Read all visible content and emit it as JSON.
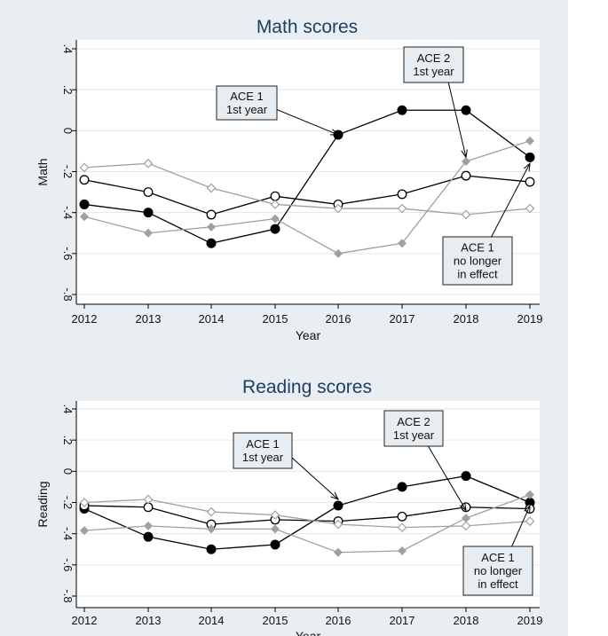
{
  "chart_data": [
    {
      "type": "line",
      "title": "Math scores",
      "xlabel": "Year",
      "ylabel": "Math",
      "x": [
        2012,
        2013,
        2014,
        2015,
        2016,
        2017,
        2018,
        2019
      ],
      "yticks": [
        ".4",
        ".2",
        "0",
        "-.2",
        "-.4",
        "-.6",
        "-.8"
      ],
      "ylim": [
        -0.8,
        0.4
      ],
      "grid": true,
      "series": [
        {
          "marker": "filled-circle",
          "color": "#000000",
          "values": [
            -0.36,
            -0.4,
            -0.55,
            -0.48,
            -0.02,
            0.1,
            0.1,
            -0.13
          ]
        },
        {
          "marker": "hollow-circle",
          "color": "#000000",
          "values": [
            -0.24,
            -0.3,
            -0.41,
            -0.32,
            -0.36,
            -0.31,
            -0.22,
            -0.25
          ]
        },
        {
          "marker": "filled-diamond",
          "color": "#a0a0a0",
          "values": [
            -0.42,
            -0.5,
            -0.47,
            -0.43,
            -0.6,
            -0.55,
            -0.15,
            -0.05
          ]
        },
        {
          "marker": "hollow-diamond",
          "color": "#a0a0a0",
          "values": [
            -0.18,
            -0.16,
            -0.28,
            -0.36,
            -0.38,
            -0.38,
            -0.41,
            -0.38
          ]
        }
      ],
      "annotations": [
        {
          "lines": [
            "ACE 1",
            "1st year"
          ],
          "points_to": {
            "x": 2016,
            "y": -0.02
          }
        },
        {
          "lines": [
            "ACE 2",
            "1st year"
          ],
          "points_to": {
            "x": 2018,
            "y": -0.13
          }
        },
        {
          "lines": [
            "ACE 1",
            "no longer",
            "in effect"
          ],
          "points_to": {
            "x": 2019,
            "y": -0.16
          }
        }
      ]
    },
    {
      "type": "line",
      "title": "Reading scores",
      "xlabel": "Year",
      "ylabel": "Reading",
      "x": [
        2012,
        2013,
        2014,
        2015,
        2016,
        2017,
        2018,
        2019
      ],
      "yticks": [
        ".4",
        ".2",
        "0",
        "-.2",
        "-.4",
        "-.6",
        "-.8"
      ],
      "ylim": [
        -0.8,
        0.4
      ],
      "grid": true,
      "series": [
        {
          "marker": "filled-circle",
          "color": "#000000",
          "values": [
            -0.24,
            -0.42,
            -0.5,
            -0.47,
            -0.22,
            -0.1,
            -0.03,
            -0.2
          ]
        },
        {
          "marker": "hollow-circle",
          "color": "#000000",
          "values": [
            -0.22,
            -0.23,
            -0.34,
            -0.31,
            -0.32,
            -0.29,
            -0.23,
            -0.24
          ]
        },
        {
          "marker": "filled-diamond",
          "color": "#a0a0a0",
          "values": [
            -0.38,
            -0.35,
            -0.37,
            -0.37,
            -0.52,
            -0.51,
            -0.3,
            -0.15
          ]
        },
        {
          "marker": "hollow-diamond",
          "color": "#a0a0a0",
          "values": [
            -0.2,
            -0.18,
            -0.26,
            -0.28,
            -0.34,
            -0.36,
            -0.35,
            -0.32
          ]
        }
      ],
      "annotations": [
        {
          "lines": [
            "ACE 1",
            "1st year"
          ],
          "points_to": {
            "x": 2016,
            "y": -0.18
          }
        },
        {
          "lines": [
            "ACE 2",
            "1st year"
          ],
          "points_to": {
            "x": 2018,
            "y": -0.25
          }
        },
        {
          "lines": [
            "ACE 1",
            "no longer",
            "in effect"
          ],
          "points_to": {
            "x": 2019,
            "y": -0.22
          }
        }
      ]
    }
  ]
}
